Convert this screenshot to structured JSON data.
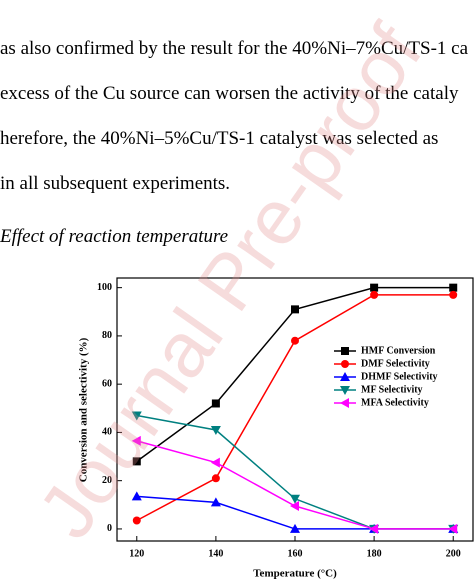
{
  "document": {
    "lines": [
      "as also confirmed by the result for the 40%Ni–7%Cu/TS-1 ca",
      "excess of the Cu source can worsen the activity of the cataly",
      "herefore, the 40%Ni–5%Cu/TS-1 catalyst was selected as",
      "in all subsequent experiments."
    ],
    "heading": "Effect of reaction temperature"
  },
  "watermark": "Journal Pre-proof",
  "chart_data": {
    "type": "line",
    "x_label": "Temperature (°C)",
    "y_label": "Conversion and selectivity (%)",
    "x": [
      120,
      140,
      160,
      180,
      200
    ],
    "xlim": [
      115,
      205
    ],
    "xticks": [
      120,
      140,
      160,
      180,
      200
    ],
    "ylim": [
      -5,
      104
    ],
    "yticks": [
      0,
      20,
      40,
      60,
      80,
      100
    ],
    "series": [
      {
        "name": "HMF Conversion",
        "color": "#000000",
        "marker": "square",
        "values": [
          28,
          52,
          91,
          100,
          100
        ]
      },
      {
        "name": "DMF Selectivity",
        "color": "#ff0000",
        "marker": "circle",
        "values": [
          3.5,
          21,
          78,
          97,
          97
        ]
      },
      {
        "name": "DHMF Selectivity",
        "color": "#0000ff",
        "marker": "triangle-up",
        "values": [
          13.5,
          11,
          0,
          0,
          0
        ]
      },
      {
        "name": "MF Selectivity",
        "color": "#008080",
        "marker": "triangle-down",
        "values": [
          47,
          41,
          12.5,
          0,
          0
        ]
      },
      {
        "name": "MFA Selectivity",
        "color": "#ff00ff",
        "marker": "triangle-left",
        "values": [
          36.5,
          27.5,
          9.5,
          0,
          0
        ]
      }
    ]
  }
}
